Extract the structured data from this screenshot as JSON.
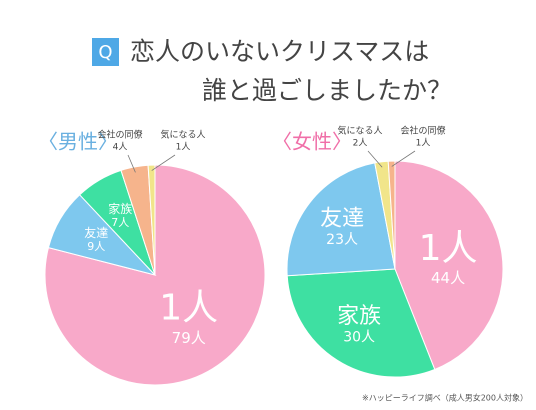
{
  "header": {
    "badge": "Q",
    "title": [
      "恋人のいないクリスマスは",
      "誰と過ごしましたか？"
    ]
  },
  "footnote": "※ハッピーライフ調べ（成人男女200人対象）",
  "chart_data": [
    {
      "type": "pie",
      "title": "〈男性〉",
      "title_color": "#6ab0e0",
      "categories": [
        "1人",
        "友達",
        "家族",
        "会社の同僚",
        "気になる人"
      ],
      "values": [
        79,
        9,
        7,
        4,
        1
      ],
      "value_labels": [
        "79人",
        "9人",
        "7人",
        "4人",
        "1人"
      ],
      "colors": [
        "#f8a9c9",
        "#7ec8ee",
        "#3ee0a2",
        "#f6b48c",
        "#f1e58a"
      ]
    },
    {
      "type": "pie",
      "title": "〈女性〉",
      "title_color": "#f06fa8",
      "categories": [
        "1人",
        "家族",
        "友達",
        "気になる人",
        "会社の同僚"
      ],
      "values": [
        44,
        30,
        23,
        2,
        1
      ],
      "value_labels": [
        "44人",
        "30人",
        "23人",
        "2人",
        "1人"
      ],
      "colors": [
        "#f8a9c9",
        "#3ee0a2",
        "#7ec8ee",
        "#f1e58a",
        "#f6b48c"
      ]
    }
  ]
}
